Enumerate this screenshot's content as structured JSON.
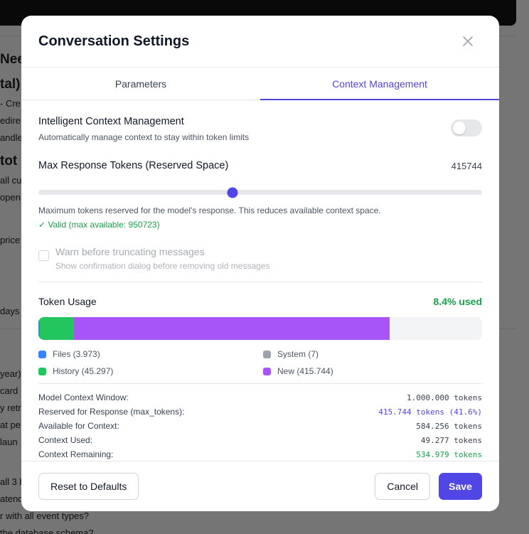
{
  "background": {
    "texts": [
      {
        "text": "Nee",
        "top": 73,
        "big": true
      },
      {
        "text": "tal):",
        "top": 108,
        "big": true
      },
      {
        "text": "- Cre",
        "top": 138
      },
      {
        "text": "edire",
        "top": 162
      },
      {
        "text": "andle",
        "top": 186
      },
      {
        "text": "tot",
        "top": 216,
        "big": true
      },
      {
        "text": "all cu",
        "top": 246
      },
      {
        "text": "open",
        "top": 270
      },
      {
        "text": "price",
        "top": 330
      },
      {
        "text": "days",
        "top": 430
      },
      {
        "text": "year)",
        "top": 518
      },
      {
        "text": "card",
        "top": 542
      },
      {
        "text": "y retr",
        "top": 566
      },
      {
        "text": "at pe",
        "top": 590
      },
      {
        "text": "laun",
        "top": 614
      },
      {
        "text": "all 3 b",
        "top": 670
      },
      {
        "text": "atend",
        "top": 694
      },
      {
        "text": "r with all event types?",
        "top": 718
      },
      {
        "text": "the database schema?",
        "top": 742
      }
    ]
  },
  "modal": {
    "title": "Conversation Settings",
    "close_icon": "close-icon",
    "tabs": [
      {
        "label": "Parameters",
        "active": false
      },
      {
        "label": "Context Management",
        "active": true
      }
    ],
    "intelligent": {
      "title": "Intelligent Context Management",
      "description": "Automatically manage context to stay within token limits",
      "enabled": false
    },
    "max_response": {
      "label": "Max Response Tokens (Reserved Space)",
      "value": "415744",
      "slider_fraction": 0.437,
      "help": "Maximum tokens reserved for the model's response. This reduces available context space.",
      "valid": "✓ Valid (max available: 950723)"
    },
    "warn": {
      "title": "Warn before truncating messages",
      "description": "Show confirmation dialog before removing old messages",
      "checked": false,
      "disabled": true
    },
    "usage": {
      "title": "Token Usage",
      "percent_label": "8.4% used",
      "segments": [
        {
          "name": "files",
          "fraction": 0.004,
          "color": "#3b82f6"
        },
        {
          "name": "history",
          "fraction": 0.076,
          "color": "#22c55e"
        },
        {
          "name": "new",
          "fraction": 0.7115,
          "color": "#a855f7"
        }
      ],
      "legend": [
        {
          "label": "Files (3.973)",
          "color": "#3b82f6"
        },
        {
          "label": "System (7)",
          "color": "#9ca3af"
        },
        {
          "label": "History (45.297)",
          "color": "#22c55e"
        },
        {
          "label": "New (415.744)",
          "color": "#a855f7"
        }
      ]
    },
    "stats": [
      {
        "label": "Model Context Window:",
        "value": "1.000.000 tokens",
        "color": "#374151"
      },
      {
        "label": "Reserved for Response (max_tokens):",
        "value": "415.744 tokens (41.6%)",
        "color": "#4f46e5"
      },
      {
        "label": "Available for Context:",
        "value": "584.256 tokens",
        "color": "#374151"
      },
      {
        "label": "Context Used:",
        "value": "49.277 tokens",
        "color": "#374151"
      },
      {
        "label": "Context Remaining:",
        "value": "534.979 tokens",
        "color": "#16a34a"
      }
    ],
    "footer": {
      "reset_label": "Reset to Defaults",
      "cancel_label": "Cancel",
      "save_label": "Save"
    }
  }
}
